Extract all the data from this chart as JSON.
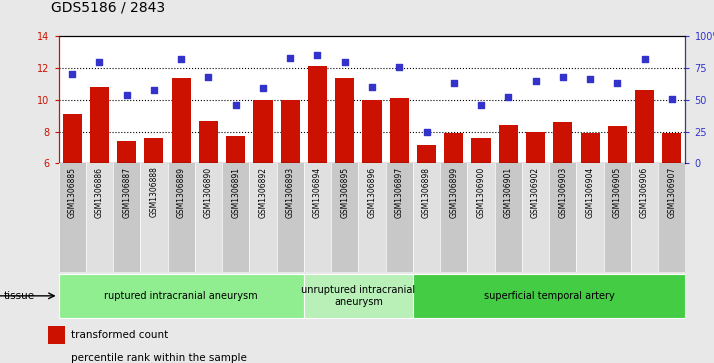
{
  "title": "GDS5186 / 2843",
  "samples": [
    "GSM1306885",
    "GSM1306886",
    "GSM1306887",
    "GSM1306888",
    "GSM1306889",
    "GSM1306890",
    "GSM1306891",
    "GSM1306892",
    "GSM1306893",
    "GSM1306894",
    "GSM1306895",
    "GSM1306896",
    "GSM1306897",
    "GSM1306898",
    "GSM1306899",
    "GSM1306900",
    "GSM1306901",
    "GSM1306902",
    "GSM1306903",
    "GSM1306904",
    "GSM1306905",
    "GSM1306906",
    "GSM1306907"
  ],
  "bar_values": [
    9.1,
    10.8,
    7.4,
    7.6,
    11.35,
    8.65,
    7.7,
    10.0,
    10.0,
    12.1,
    11.35,
    10.0,
    10.1,
    7.15,
    7.9,
    7.6,
    8.4,
    8.0,
    8.6,
    7.9,
    8.35,
    10.6,
    7.9
  ],
  "dot_values": [
    70,
    80,
    54,
    58,
    82,
    68,
    46,
    59,
    83,
    85,
    80,
    60,
    76,
    25,
    63,
    46,
    52,
    65,
    68,
    66,
    63,
    82,
    51
  ],
  "ylim_left": [
    6,
    14
  ],
  "ylim_right": [
    0,
    100
  ],
  "yticks_left": [
    6,
    8,
    10,
    12,
    14
  ],
  "yticks_right": [
    0,
    25,
    50,
    75,
    100
  ],
  "bar_color": "#cc1100",
  "dot_color": "#3333cc",
  "bg_color": "#e8e8e8",
  "plot_bg": "#ffffff",
  "col_bg_odd": "#c8c8c8",
  "col_bg_even": "#e0e0e0",
  "tissue_groups": [
    {
      "label": "ruptured intracranial aneurysm",
      "start": 0,
      "end": 9,
      "color": "#90ee90"
    },
    {
      "label": "unruptured intracranial\naneurysm",
      "start": 9,
      "end": 13,
      "color": "#b8f0b8"
    },
    {
      "label": "superficial temporal artery",
      "start": 13,
      "end": 23,
      "color": "#44cc44"
    }
  ],
  "legend_bar_label": "transformed count",
  "legend_dot_label": "percentile rank within the sample",
  "tissue_label": "tissue",
  "title_fontsize": 10,
  "tick_fontsize": 7,
  "sample_fontsize": 5.5
}
